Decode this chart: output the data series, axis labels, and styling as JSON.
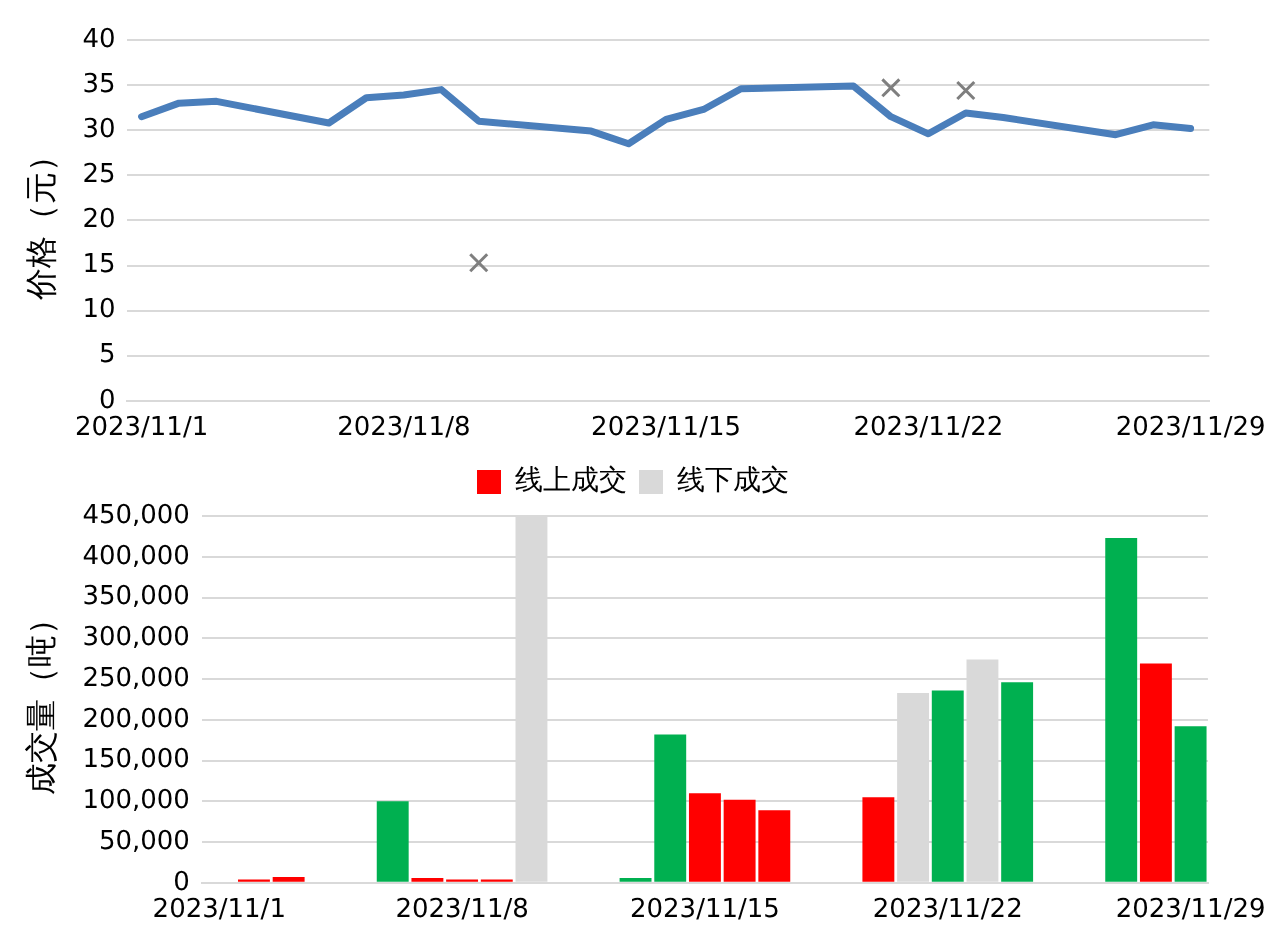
{
  "chart_data": [
    {
      "type": "line",
      "ylabel": "价格（元）",
      "x": [
        "2023-11-01",
        "2023-11-02",
        "2023-11-03",
        "2023-11-06",
        "2023-11-07",
        "2023-11-08",
        "2023-11-09",
        "2023-11-10",
        "2023-11-13",
        "2023-11-14",
        "2023-11-15",
        "2023-11-16",
        "2023-11-17",
        "2023-11-20",
        "2023-11-21",
        "2023-11-22",
        "2023-11-23",
        "2023-11-24",
        "2023-11-27",
        "2023-11-28",
        "2023-11-29"
      ],
      "series": [
        {
          "color": "#4a7ebb",
          "values": [
            31.5,
            33.0,
            33.2,
            30.8,
            33.6,
            33.9,
            34.5,
            31.0,
            29.9,
            28.5,
            31.2,
            32.3,
            34.6,
            34.9,
            31.5,
            29.6,
            31.9,
            31.4,
            29.5,
            30.6,
            30.2
          ]
        },
        {
          "type": "scatter",
          "color": "#7f7f7f",
          "marker": "cross",
          "x": [
            "2023-11-10",
            "2023-11-21",
            "2023-11-23"
          ],
          "values": [
            15.3,
            34.7,
            34.4
          ]
        }
      ],
      "xlim": [
        "2023-10-31T15:00",
        "2023-11-29T12:00"
      ],
      "xticks": [
        {
          "value": "2023-11-01",
          "label": "2023/11/1"
        },
        {
          "value": "2023-11-08",
          "label": "2023/11/8"
        },
        {
          "value": "2023-11-15",
          "label": "2023/11/15"
        },
        {
          "value": "2023-11-22",
          "label": "2023/11/22"
        },
        {
          "value": "2023-11-29",
          "label": "2023/11/29"
        }
      ],
      "ylim": [
        0,
        40
      ],
      "yticks": [
        0,
        5,
        10,
        15,
        20,
        25,
        30,
        35,
        40
      ],
      "grid": "y",
      "marker": "none",
      "line_style": "solid"
    },
    {
      "type": "bar",
      "ylabel": "成交量（吨）",
      "x": [
        "2023-11-02",
        "2023-11-03",
        "2023-11-06",
        "2023-11-07",
        "2023-11-08",
        "2023-11-09",
        "2023-11-10",
        "2023-11-13",
        "2023-11-14",
        "2023-11-15",
        "2023-11-16",
        "2023-11-17",
        "2023-11-20",
        "2023-11-21",
        "2023-11-22",
        "2023-11-23",
        "2023-11-24",
        "2023-11-27",
        "2023-11-28",
        "2023-11-29"
      ],
      "series": [
        {
          "name": "线上成交",
          "color": "#ff0000",
          "values": [
            4000,
            7000,
            null,
            6000,
            4000,
            4000,
            null,
            null,
            null,
            110000,
            102000,
            89000,
            105000,
            null,
            null,
            null,
            null,
            null,
            269000,
            null
          ]
        },
        {
          "name": "线下成交",
          "color": "#d9d9d9",
          "values": [
            null,
            null,
            null,
            null,
            null,
            null,
            450000,
            null,
            null,
            null,
            null,
            null,
            null,
            233000,
            null,
            274000,
            null,
            null,
            null,
            null
          ]
        },
        {
          "color": "#00b050",
          "values": [
            null,
            null,
            100000,
            null,
            null,
            null,
            null,
            6000,
            182000,
            null,
            null,
            null,
            null,
            null,
            236000,
            null,
            246000,
            423000,
            null,
            192000
          ]
        }
      ],
      "xlim": [
        "2023-10-31T12:00",
        "2023-11-29T12:00"
      ],
      "xticks": [
        {
          "value": "2023-11-01",
          "label": "2023/11/1"
        },
        {
          "value": "2023-11-08",
          "label": "2023/11/8"
        },
        {
          "value": "2023-11-15",
          "label": "2023/11/15"
        },
        {
          "value": "2023-11-22",
          "label": "2023/11/22"
        },
        {
          "value": "2023-11-29",
          "label": "2023/11/29"
        }
      ],
      "ylim": [
        0,
        450000
      ],
      "yticks": [
        0,
        {
          "value": 50000,
          "label": "50,000"
        },
        {
          "value": 100000,
          "label": "100,000"
        },
        {
          "value": 150000,
          "label": "150,000"
        },
        {
          "value": 200000,
          "label": "200,000"
        },
        {
          "value": 250000,
          "label": "250,000"
        },
        {
          "value": 300000,
          "label": "300,000"
        },
        {
          "value": 350000,
          "label": "350,000"
        },
        {
          "value": 400000,
          "label": "400,000"
        },
        {
          "value": 450000,
          "label": "450,000"
        }
      ],
      "grid": "y",
      "legend": "top"
    }
  ]
}
